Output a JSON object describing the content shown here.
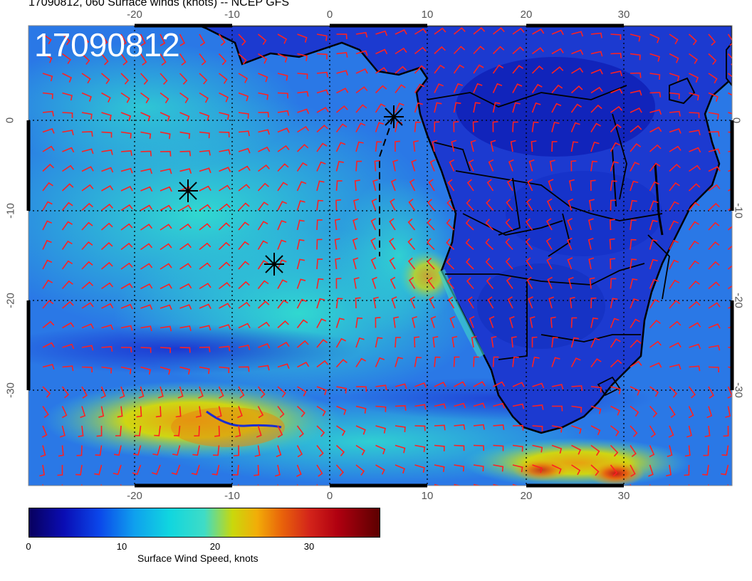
{
  "title": "17090812, 060 Surface winds (knots) -- NCEP GFS",
  "stamp": "17090812",
  "axes": {
    "lon_ticks": [
      "-20",
      "-10",
      "0",
      "10",
      "20",
      "30"
    ],
    "lat_ticks": [
      "0",
      "-10",
      "-20",
      "-30"
    ]
  },
  "colorbar": {
    "label": "Surface Wind Speed, knots",
    "ticks": [
      "0",
      "10",
      "20",
      "30"
    ]
  },
  "colors": {
    "barb": "#ff2020",
    "coast": "#000000",
    "ocean_base": "#2f7fe8",
    "land_base": "#1836c8"
  },
  "storm_markers": 3
}
